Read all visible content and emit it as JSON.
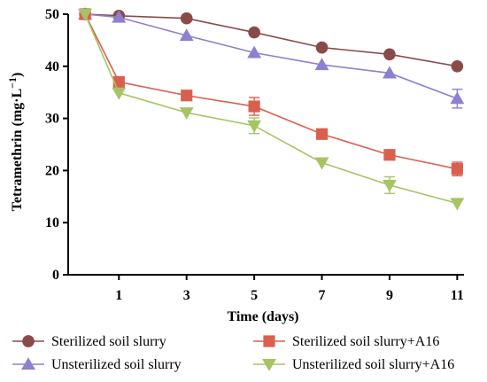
{
  "chart_data": {
    "type": "line",
    "title": "",
    "xlabel": "Time (days)",
    "ylabel_main": "Tetramethrin (mg·L",
    "ylabel_sup": "−1",
    "ylabel_close": ")",
    "x_ticks": [
      "1",
      "3",
      "5",
      "7",
      "9",
      "11"
    ],
    "y_ticks": [
      "0",
      "10",
      "20",
      "30",
      "40",
      "50"
    ],
    "xlim": [
      -0.5,
      11.2
    ],
    "ylim": [
      0,
      50
    ],
    "x": [
      0,
      1,
      3,
      5,
      7,
      9,
      11
    ],
    "legend_position": "bottom",
    "grid": false,
    "series": [
      {
        "name": "Sterilized soil slurry",
        "marker": "circle",
        "color": "#8b4a4a",
        "values": [
          50,
          49.7,
          49.2,
          46.5,
          43.6,
          42.3,
          40.0
        ],
        "errors": [
          0,
          0,
          0,
          0,
          0,
          0,
          0
        ]
      },
      {
        "name": "Unsterilized soil slurry",
        "marker": "triangle-up",
        "color": "#8f7fd0",
        "values": [
          50,
          49.4,
          45.9,
          42.6,
          40.3,
          38.7,
          33.8
        ],
        "errors": [
          0,
          0,
          0,
          0,
          0,
          0,
          1.8
        ]
      },
      {
        "name": "Sterilized soil slurry+A16",
        "marker": "square",
        "color": "#d9604e",
        "values": [
          50,
          37.0,
          34.4,
          32.3,
          27.0,
          23.0,
          20.3
        ],
        "errors": [
          0,
          0,
          0,
          1.7,
          0,
          0,
          1.3
        ]
      },
      {
        "name": "Unsterilized soil slurry+A16",
        "marker": "triangle-down",
        "color": "#a6c464",
        "values": [
          50,
          34.9,
          31.1,
          28.6,
          21.5,
          17.2,
          13.7
        ],
        "errors": [
          0,
          0,
          0,
          1.5,
          0,
          1.6,
          0
        ]
      }
    ]
  }
}
